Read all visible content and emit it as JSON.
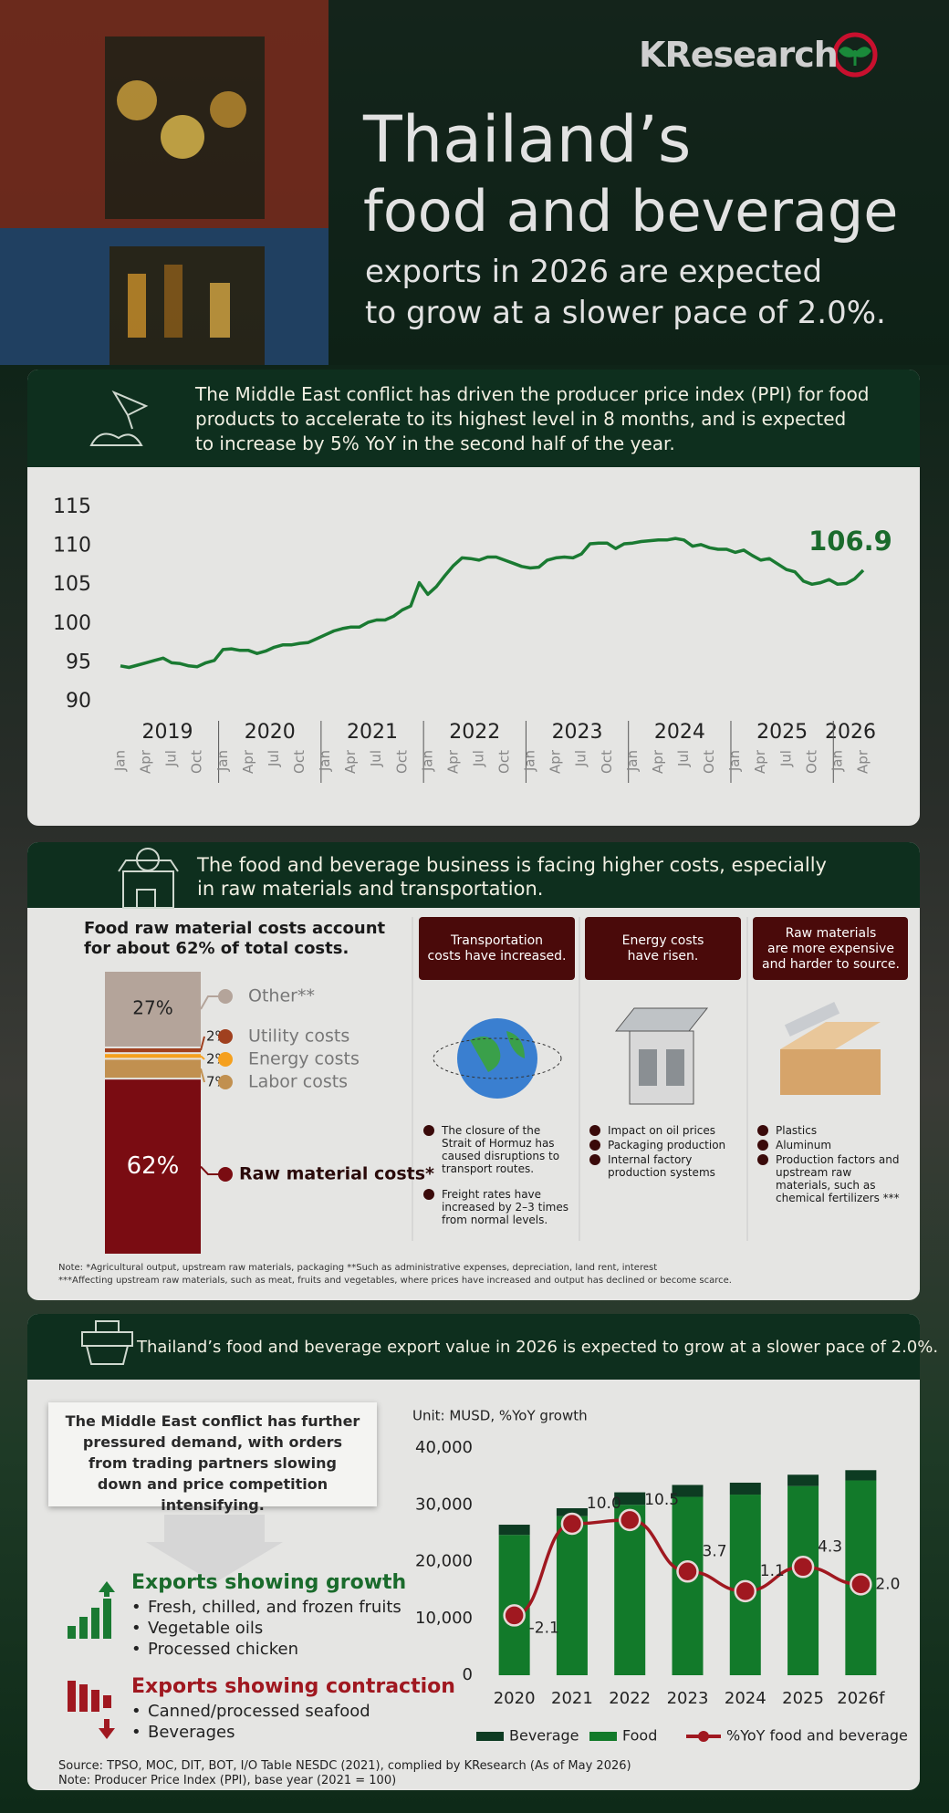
{
  "header": {
    "brand": "KResearch",
    "title_line1": "Thailand’s",
    "title_line2": "food and beverage",
    "subtitle_line1": "exports in 2026 are expected",
    "subtitle_line2": "to grow at a slower pace of 2.0%."
  },
  "section1": {
    "banner_lines": [
      "The Middle East conflict has driven the producer price index (PPI) for food",
      "products to accelerate to its highest level in 8 months, and is expected",
      "to increase by 5% YoY in the second half of the year."
    ]
  },
  "section2": {
    "banner_lines": [
      "The food and beverage business is facing higher costs, especially",
      "in raw materials and transportation."
    ],
    "cost_heading_lines": [
      "Food raw material costs account",
      "for about 62% of total costs."
    ],
    "columns": [
      {
        "title_lines": [
          "Transportation",
          "costs have increased."
        ],
        "bullets": [
          "The closure of the Strait of Hormuz has caused disruptions to transport routes.",
          "Freight rates have increased by 2–3 times from normal levels."
        ]
      },
      {
        "title_lines": [
          "Energy costs",
          "have risen."
        ],
        "bullets": [
          "Impact on oil prices",
          "Packaging production",
          "Internal factory production systems"
        ]
      },
      {
        "title_lines": [
          "Raw materials",
          "are more expensive",
          "and harder to source."
        ],
        "bullets": [
          "Plastics",
          "Aluminum",
          "Production factors and upstream raw materials, such as chemical fertilizers ***"
        ]
      }
    ],
    "notes": [
      "Note: *Agricultural output, upstream raw materials, packaging **Such as administrative expenses, depreciation, land rent, interest",
      "***Affecting upstream raw materials, such as meat, fruits and vegetables, where prices have increased and output has declined or become scarce."
    ]
  },
  "section3": {
    "banner": "Thailand’s food and beverage export value in 2026 is expected to grow at a slower pace of 2.0%.",
    "callout": "The Middle East conflict has further pressured demand, with orders from trading partners slowing down and price competition intensifying.",
    "growth": {
      "title": "Exports showing growth",
      "items": [
        "Fresh, chilled, and frozen fruits",
        "Vegetable oils",
        "Processed chicken"
      ]
    },
    "contraction": {
      "title": "Exports showing contraction",
      "items": [
        "Canned/processed seafood",
        "Beverages"
      ]
    },
    "source_lines": [
      "Source: TPSO, MOC, DIT, BOT, I/O Table NESDC (2021), complied by KResearch (As of May 2026)",
      "Note: Producer Price Index (PPI), base year (2021 = 100)"
    ]
  },
  "chart_data": [
    {
      "type": "line",
      "color": "#1a7a32",
      "ylim": [
        90,
        115
      ],
      "yticks": [
        90,
        95,
        100,
        105,
        110,
        115
      ],
      "grid": false,
      "x": [
        "2019-01",
        "2019-02",
        "2019-03",
        "2019-04",
        "2019-05",
        "2019-06",
        "2019-07",
        "2019-08",
        "2019-09",
        "2019-10",
        "2019-11",
        "2019-12",
        "2020-01",
        "2020-02",
        "2020-03",
        "2020-04",
        "2020-05",
        "2020-06",
        "2020-07",
        "2020-08",
        "2020-09",
        "2020-10",
        "2020-11",
        "2020-12",
        "2021-01",
        "2021-02",
        "2021-03",
        "2021-04",
        "2021-05",
        "2021-06",
        "2021-07",
        "2021-08",
        "2021-09",
        "2021-10",
        "2021-11",
        "2021-12",
        "2022-01",
        "2022-02",
        "2022-03",
        "2022-04",
        "2022-05",
        "2022-06",
        "2022-07",
        "2022-08",
        "2022-09",
        "2022-10",
        "2022-11",
        "2022-12",
        "2023-01",
        "2023-02",
        "2023-03",
        "2023-04",
        "2023-05",
        "2023-06",
        "2023-07",
        "2023-08",
        "2023-09",
        "2023-10",
        "2023-11",
        "2023-12",
        "2024-01",
        "2024-02",
        "2024-03",
        "2024-04",
        "2024-05",
        "2024-06",
        "2024-07",
        "2024-08",
        "2024-09",
        "2024-10",
        "2024-11",
        "2024-12",
        "2025-01",
        "2025-02",
        "2025-03",
        "2025-04",
        "2025-05",
        "2025-06",
        "2025-07",
        "2025-08",
        "2025-09",
        "2025-10",
        "2025-11",
        "2025-12",
        "2026-01",
        "2026-02",
        "2026-03",
        "2026-04"
      ],
      "values": [
        94.6,
        94.4,
        94.7,
        95.0,
        95.3,
        95.6,
        95.0,
        94.9,
        94.6,
        94.5,
        95.0,
        95.3,
        96.7,
        96.8,
        96.6,
        96.6,
        96.2,
        96.5,
        97.0,
        97.3,
        97.3,
        97.5,
        97.6,
        98.1,
        98.6,
        99.1,
        99.4,
        99.6,
        99.6,
        100.2,
        100.5,
        100.5,
        101.0,
        101.8,
        102.3,
        105.3,
        103.8,
        104.8,
        106.2,
        107.5,
        108.5,
        108.4,
        108.2,
        108.6,
        108.6,
        108.2,
        107.8,
        107.4,
        107.2,
        107.3,
        108.2,
        108.5,
        108.6,
        108.5,
        109.0,
        110.3,
        110.4,
        110.4,
        109.7,
        110.3,
        110.4,
        110.6,
        110.7,
        110.8,
        110.8,
        111.0,
        110.8,
        110.0,
        110.2,
        109.8,
        109.6,
        109.6,
        109.2,
        109.5,
        108.8,
        108.2,
        108.4,
        107.7,
        107.0,
        106.7,
        105.5,
        105.1,
        105.3,
        105.7,
        105.1,
        105.2,
        105.8,
        106.9
      ],
      "years": [
        "2019",
        "2020",
        "2021",
        "2022",
        "2023",
        "2024",
        "2025",
        "2026"
      ],
      "xticks": [
        {
          "value": "2019-01",
          "label": "Jan"
        },
        {
          "value": "2019-04",
          "label": "Apr"
        },
        {
          "value": "2019-07",
          "label": "Jul"
        },
        {
          "value": "2019-10",
          "label": "Oct"
        },
        {
          "value": "2020-01",
          "label": "Jan"
        },
        {
          "value": "2020-04",
          "label": "Apr"
        },
        {
          "value": "2020-07",
          "label": "Jul"
        },
        {
          "value": "2020-10",
          "label": "Oct"
        },
        {
          "value": "2021-01",
          "label": "Jan"
        },
        {
          "value": "2021-04",
          "label": "Apr"
        },
        {
          "value": "2021-07",
          "label": "Jul"
        },
        {
          "value": "2021-10",
          "label": "Oct"
        },
        {
          "value": "2022-01",
          "label": "Jan"
        },
        {
          "value": "2022-04",
          "label": "Apr"
        },
        {
          "value": "2022-07",
          "label": "Jul"
        },
        {
          "value": "2022-10",
          "label": "Oct"
        },
        {
          "value": "2023-01",
          "label": "Jan"
        },
        {
          "value": "2023-04",
          "label": "Apr"
        },
        {
          "value": "2023-07",
          "label": "Jul"
        },
        {
          "value": "2023-10",
          "label": "Oct"
        },
        {
          "value": "2024-01",
          "label": "Jan"
        },
        {
          "value": "2024-04",
          "label": "Apr"
        },
        {
          "value": "2024-07",
          "label": "Jul"
        },
        {
          "value": "2024-10",
          "label": "Oct"
        },
        {
          "value": "2025-01",
          "label": "Jan"
        },
        {
          "value": "2025-04",
          "label": "Apr"
        },
        {
          "value": "2025-07",
          "label": "Jul"
        },
        {
          "value": "2025-10",
          "label": "Oct"
        },
        {
          "value": "2026-01",
          "label": "Jan"
        },
        {
          "value": "2026-04",
          "label": "Apr"
        }
      ]
    },
    {
      "type": "bar",
      "stacked": true,
      "categories": [
        null
      ],
      "ylim": [
        0,
        100
      ],
      "series": [
        {
          "name": "Raw material costs*",
          "color": "#7a0c12",
          "values": [
            62
          ],
          "value_labels": [
            "62%"
          ]
        },
        {
          "name": "Labor costs",
          "color": "#c19050",
          "values": [
            7
          ],
          "value_labels": [
            "7%"
          ]
        },
        {
          "name": "Energy costs",
          "color": "#f5a01e",
          "values": [
            2
          ],
          "value_labels": [
            "2%"
          ]
        },
        {
          "name": "Utility costs",
          "color": "#a0401f",
          "values": [
            2
          ],
          "value_labels": [
            "2%"
          ]
        },
        {
          "name": "Other**",
          "color": "#b4a49a",
          "values": [
            27
          ],
          "value_labels": [
            "27%"
          ]
        }
      ]
    },
    {
      "type": "combo",
      "stacked": true,
      "unit_label": "Unit: MUSD, %YoY growth",
      "categories": [
        "2020",
        "2021",
        "2022",
        "2023",
        "2024",
        "2025",
        "2026f"
      ],
      "ylim": [
        0,
        40000
      ],
      "yticks": [
        0,
        {
          "value": 10000,
          "label": "10,000"
        },
        {
          "value": 20000,
          "label": "20,000"
        },
        {
          "value": 30000,
          "label": "30,000"
        },
        {
          "value": 40000,
          "label": "40,000"
        }
      ],
      "y2lim": [
        -10,
        20
      ],
      "series": [
        {
          "name": "Beverage",
          "type": "bar",
          "color": "#0d3b22",
          "values": [
            1800,
            1400,
            2200,
            2100,
            2100,
            2000,
            1800
          ]
        },
        {
          "name": "Food",
          "type": "bar",
          "color": "#127a2a",
          "values": [
            24700,
            28000,
            30000,
            31400,
            31800,
            33300,
            34300
          ]
        },
        {
          "name": "%YoY food and beverage",
          "type": "line",
          "axis": "y2",
          "color": "#a01820",
          "values": [
            -2.1,
            10,
            10.5,
            3.7,
            1.1,
            4.3,
            2
          ],
          "value_labels": [
            "-2.1",
            "10.0",
            "10.5",
            "3.7",
            "1.1",
            "4.3",
            "2.0"
          ]
        }
      ]
    }
  ]
}
